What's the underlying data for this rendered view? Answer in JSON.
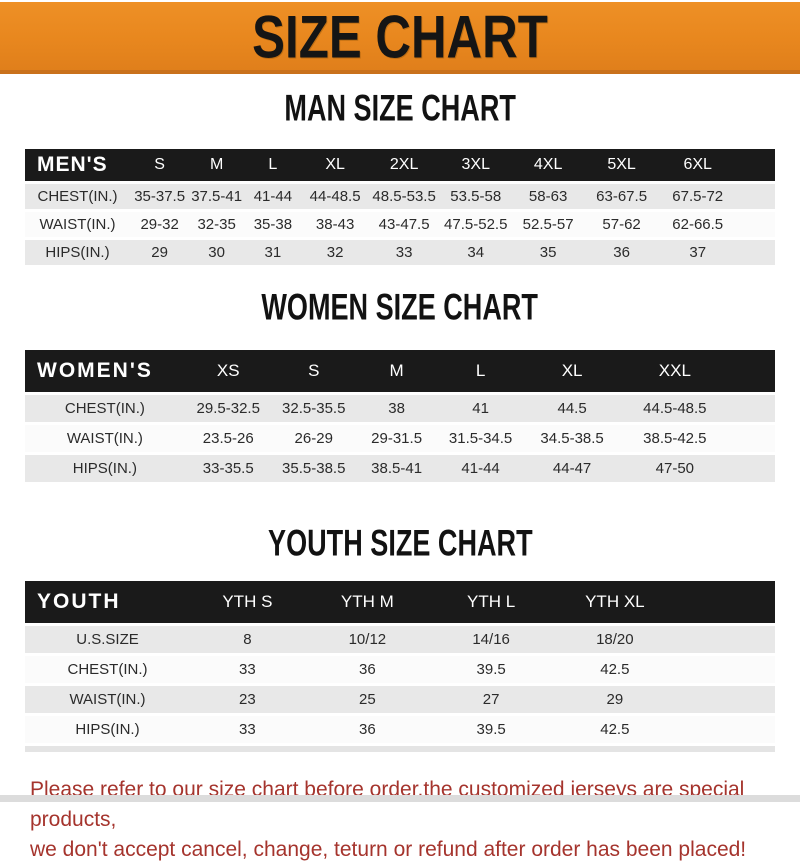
{
  "banner": {
    "title": "SIZE CHART"
  },
  "colors": {
    "banner_orange": "#e8871e",
    "banner_border": "#c9711c",
    "header_bar_black": "#1a1a1a",
    "row_shade_gray": "#e8e8e8",
    "footer_red": "#a5342d"
  },
  "sections": [
    {
      "heading": "MAN SIZE CHART",
      "table": {
        "label": "MEN'S",
        "columns": [
          "S",
          "M",
          "L",
          "XL",
          "2XL",
          "3XL",
          "4XL",
          "5XL",
          "6XL"
        ],
        "rows": [
          {
            "label": "CHEST(IN.)",
            "values": [
              "35-37.5",
              "37.5-41",
              "41-44",
              "44-48.5",
              "48.5-53.5",
              "53.5-58",
              "58-63",
              "63-67.5",
              "67.5-72"
            ]
          },
          {
            "label": "WAIST(IN.)",
            "values": [
              "29-32",
              "32-35",
              "35-38",
              "38-43",
              "43-47.5",
              "47.5-52.5",
              "52.5-57",
              "57-62",
              "62-66.5"
            ]
          },
          {
            "label": "HIPS(IN.)",
            "values": [
              "29",
              "30",
              "31",
              "32",
              "33",
              "34",
              "35",
              "36",
              "37"
            ]
          }
        ]
      }
    },
    {
      "heading": "WOMEN SIZE CHART",
      "table": {
        "label": "WOMEN'S",
        "columns": [
          "XS",
          "S",
          "M",
          "L",
          "XL",
          "XXL"
        ],
        "rows": [
          {
            "label": "CHEST(IN.)",
            "values": [
              "29.5-32.5",
              "32.5-35.5",
              "38",
              "41",
              "44.5",
              "44.5-48.5"
            ]
          },
          {
            "label": "WAIST(IN.)",
            "values": [
              "23.5-26",
              "26-29",
              "29-31.5",
              "31.5-34.5",
              "34.5-38.5",
              "38.5-42.5"
            ]
          },
          {
            "label": "HIPS(IN.)",
            "values": [
              "33-35.5",
              "35.5-38.5",
              "38.5-41",
              "41-44",
              "44-47",
              "47-50"
            ]
          }
        ]
      }
    },
    {
      "heading": "YOUTH SIZE CHART",
      "table": {
        "label": "YOUTH",
        "columns": [
          "YTH S",
          "YTH M",
          "YTH L",
          "YTH XL"
        ],
        "rows": [
          {
            "label": "U.S.SIZE",
            "values": [
              "8",
              "10/12",
              "14/16",
              "18/20"
            ]
          },
          {
            "label": "CHEST(IN.)",
            "values": [
              "33",
              "36",
              "39.5",
              "42.5"
            ]
          },
          {
            "label": "WAIST(IN.)",
            "values": [
              "23",
              "25",
              "27",
              "29"
            ]
          },
          {
            "label": "HIPS(IN.)",
            "values": [
              "33",
              "36",
              "39.5",
              "42.5"
            ]
          }
        ]
      }
    }
  ],
  "footer": {
    "line1": "Please refer to our size chart before order,the customized jerseys are special products,",
    "line2": "we don't accept cancel, change, teturn or refund after order has been placed!"
  }
}
